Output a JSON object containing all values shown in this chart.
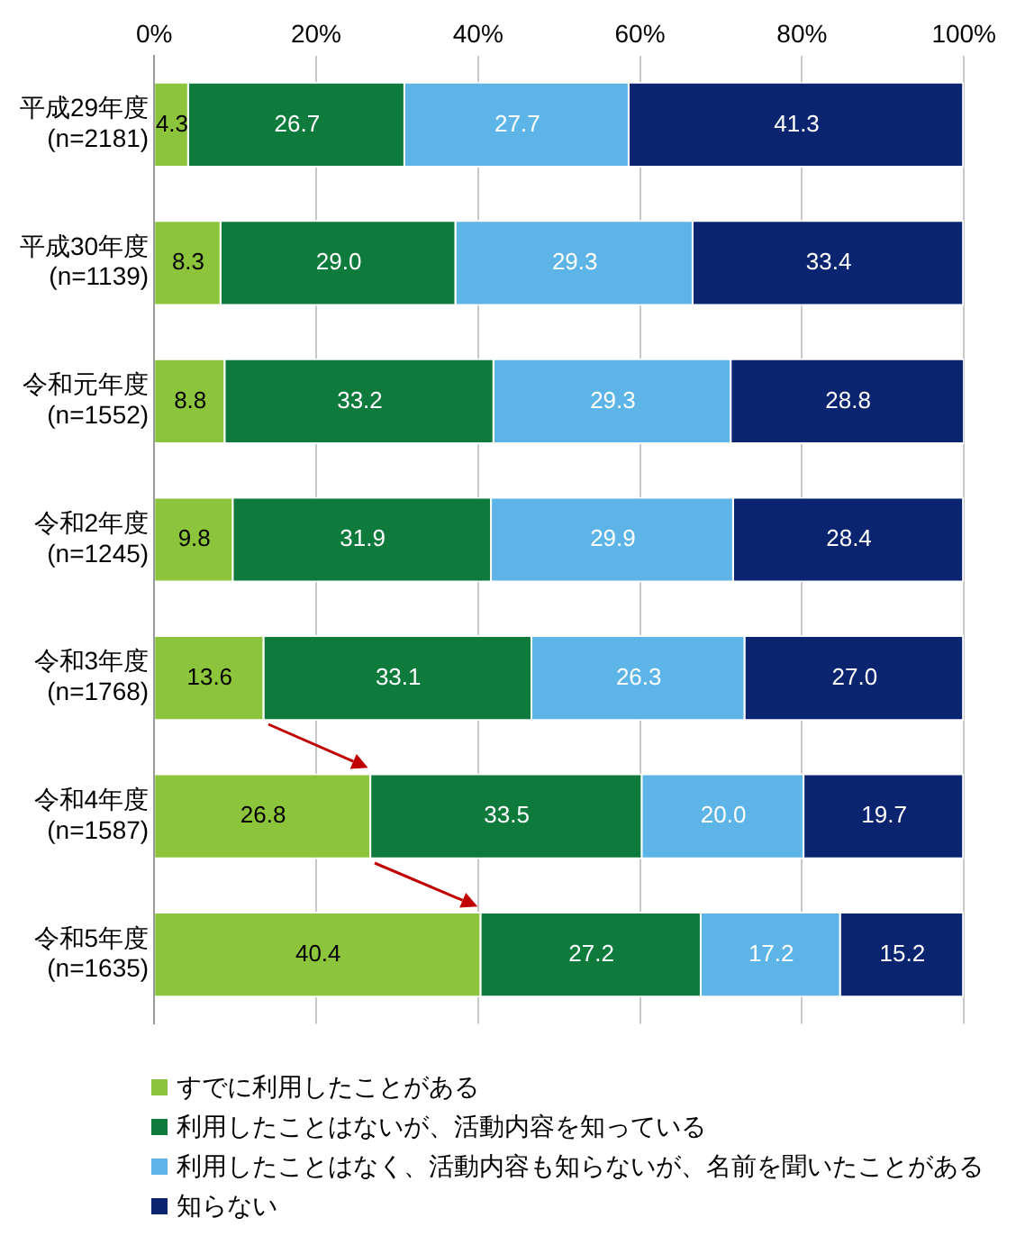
{
  "chart_data": {
    "type": "bar",
    "orientation": "horizontal",
    "stacked": true,
    "categories": [
      "平成29年度\n(n=2181)",
      "平成30年度\n(n=1139)",
      "令和元年度\n(n=1552)",
      "令和2年度\n(n=1245)",
      "令和3年度\n(n=1768)",
      "令和4年度\n(n=1587)",
      "令和5年度\n(n=1635)"
    ],
    "series": [
      {
        "name": "すでに利用したことがある",
        "color": "#8cc43c",
        "values": [
          4.3,
          8.3,
          8.8,
          9.8,
          13.6,
          26.8,
          40.4
        ],
        "value_labels": [
          "4.3",
          "8.3",
          "8.8",
          "9.8",
          "13.6",
          "26.8",
          "40.4"
        ]
      },
      {
        "name": "利用したことはないが、活動内容を知っている",
        "color": "#0e7a3c",
        "values": [
          26.7,
          29.0,
          33.2,
          31.9,
          33.1,
          33.5,
          27.2
        ],
        "value_labels": [
          "26.7",
          "29.0",
          "33.2",
          "31.9",
          "33.1",
          "33.5",
          "27.2"
        ]
      },
      {
        "name": "利用したことはなく、活動内容も知らないが、名前を聞いたことがある",
        "color": "#5db4e6",
        "values": [
          27.7,
          29.3,
          29.3,
          29.9,
          26.3,
          20.0,
          17.2
        ],
        "value_labels": [
          "27.7",
          "29.3",
          "29.3",
          "29.9",
          "26.3",
          "20.0",
          "17.2"
        ]
      },
      {
        "name": "知らない",
        "color": "#0a2470",
        "values": [
          41.3,
          33.4,
          28.8,
          28.4,
          27.0,
          19.7,
          15.2
        ],
        "value_labels": [
          "41.3",
          "33.4",
          "28.8",
          "28.4",
          "27.0",
          "19.7",
          "15.2"
        ]
      }
    ],
    "xlim": [
      0,
      100
    ],
    "xticks": [
      {
        "value": 0,
        "label": "0%"
      },
      {
        "value": 20,
        "label": "20%"
      },
      {
        "value": 40,
        "label": "40%"
      },
      {
        "value": 60,
        "label": "60%"
      },
      {
        "value": 80,
        "label": "80%"
      },
      {
        "value": 100,
        "label": "100%"
      }
    ],
    "grid": "x",
    "legend": "bottom"
  }
}
